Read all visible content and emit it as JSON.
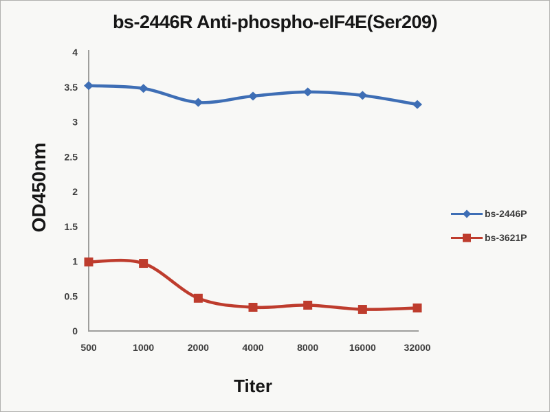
{
  "window": {
    "background": "#f8f8f6",
    "frame_border": "#b0afad"
  },
  "chart_data": {
    "type": "line",
    "title": "bs-2446R Anti-phospho-eIF4E(Ser209)",
    "xlabel": "Titer",
    "ylabel": "OD450nm",
    "categories": [
      "500",
      "1000",
      "2000",
      "4000",
      "8000",
      "16000",
      "32000"
    ],
    "series": [
      {
        "name": "bs-2446P",
        "marker": "diamond",
        "color": "#3E6EB5",
        "values": [
          3.52,
          3.48,
          3.28,
          3.37,
          3.43,
          3.38,
          3.25
        ]
      },
      {
        "name": "bs-3621P",
        "marker": "square",
        "color": "#BE3C2D",
        "values": [
          0.99,
          0.97,
          0.47,
          0.34,
          0.37,
          0.31,
          0.33
        ]
      }
    ],
    "ylim": [
      0,
      4
    ],
    "y_ticks": [
      "4",
      "3.5",
      "3",
      "2.5",
      "2",
      "1.5",
      "1",
      "0.5",
      "0"
    ],
    "grid": false,
    "legend_position": "right",
    "axis_color": "#9e9e9c",
    "tick_label_color": "#3d3d3d",
    "text_color": "#161616"
  }
}
